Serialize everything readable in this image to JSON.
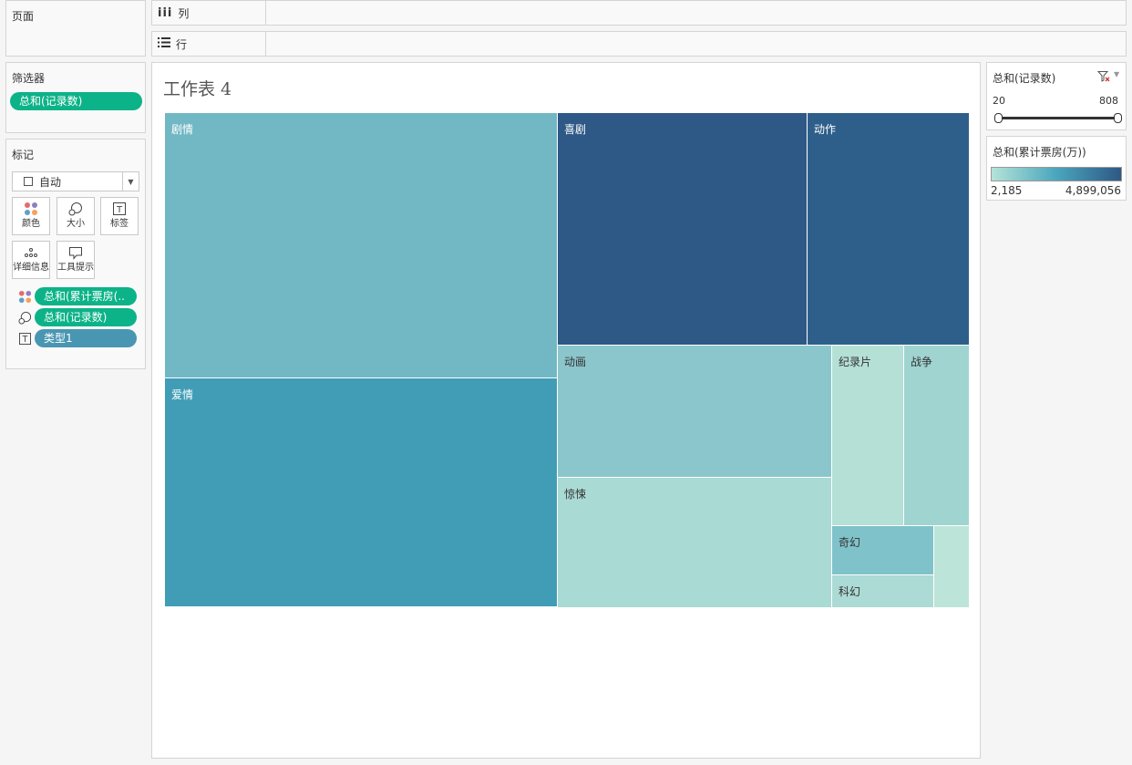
{
  "pages_card": {
    "title": "页面"
  },
  "columns_shelf": {
    "label": "列",
    "icon": "columns-icon"
  },
  "rows_shelf": {
    "label": "行",
    "icon": "rows-icon"
  },
  "filters_card": {
    "title": "筛选器",
    "pills": [
      "总和(记录数)"
    ]
  },
  "marks_card": {
    "title": "标记",
    "mark_type": "自动",
    "buttons": {
      "color": "颜色",
      "size": "大小",
      "label": "标签",
      "detail": "详细信息",
      "tooltip": "工具提示"
    },
    "fields": {
      "color_field": "总和(累计票房(..",
      "size_field": "总和(记录数)",
      "label_field": "类型1"
    }
  },
  "worksheet": {
    "title": "工作表 4"
  },
  "treemap": {
    "cells": [
      {
        "label": "剧情",
        "color": "#72b8c4"
      },
      {
        "label": "爱情",
        "color": "#419db6"
      },
      {
        "label": "喜剧",
        "color": "#2e5885"
      },
      {
        "label": "动作",
        "color": "#2e5f8a"
      },
      {
        "label": "动画",
        "color": "#8bc6cc"
      },
      {
        "label": "惊悚",
        "color": "#aadad4"
      },
      {
        "label": "纪录片",
        "color": "#b4e0d6"
      },
      {
        "label": "战争",
        "color": "#9fd4d0"
      },
      {
        "label": "奇幻",
        "color": "#80c2ca"
      },
      {
        "label": "科幻",
        "color": "#acdad5"
      },
      {
        "label": "",
        "color": "#bde4d8"
      }
    ]
  },
  "filter_legend": {
    "title": "总和(记录数)",
    "min": "20",
    "max": "808"
  },
  "color_legend": {
    "title": "总和(累计票房(万))",
    "min": "2,185",
    "max": "4,899,056",
    "color_low": "#b5e3d8",
    "color_high": "#2e5885"
  }
}
